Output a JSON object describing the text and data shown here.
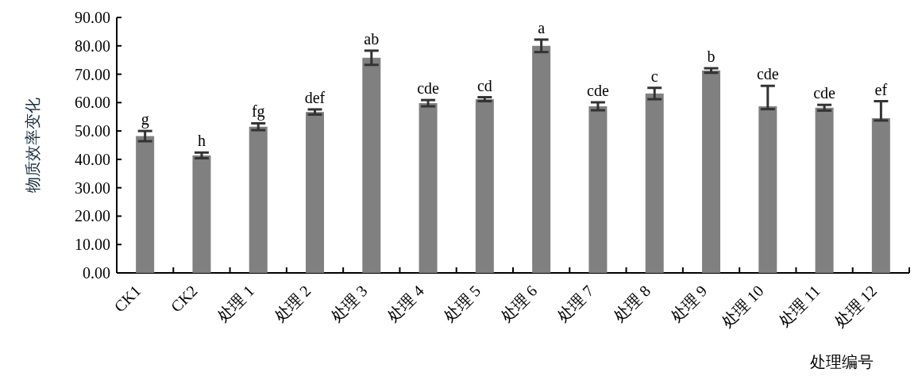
{
  "chart_data": {
    "type": "bar",
    "ylabel": "物质效率变化",
    "xlabel": "处理编号",
    "categories": [
      "CK1",
      "CK2",
      "处理 1",
      "处理 2",
      "处理 3",
      "处理 4",
      "处理 5",
      "处理 6",
      "处理 7",
      "处理 8",
      "处理 9",
      "处理 10",
      "处理 11",
      "处理 12"
    ],
    "values": [
      48.2,
      41.4,
      51.5,
      56.7,
      75.8,
      59.8,
      61.2,
      80.0,
      58.7,
      63.2,
      71.3,
      58.7,
      58.2,
      54.5
    ],
    "errors": [
      1.8,
      1.0,
      1.2,
      0.9,
      2.5,
      1.1,
      0.7,
      2.2,
      1.4,
      2.0,
      0.8,
      [
        57.7,
        65.9
      ],
      1.0,
      [
        53.7,
        60.5
      ]
    ],
    "color": "#808080",
    "ylim": [
      0,
      90
    ],
    "yticks": [
      {
        "value": 0,
        "label": "0.00"
      },
      {
        "value": 10,
        "label": "10.00"
      },
      {
        "value": 20,
        "label": "20.00"
      },
      {
        "value": 30,
        "label": "30.00"
      },
      {
        "value": 40,
        "label": "40.00"
      },
      {
        "value": 50,
        "label": "50.00"
      },
      {
        "value": 60,
        "label": "60.00"
      },
      {
        "value": 70,
        "label": "70.00"
      },
      {
        "value": 80,
        "label": "80.00"
      },
      {
        "value": 90,
        "label": "90.00"
      }
    ],
    "annotations": [
      {
        "text": "g",
        "x": "CK1",
        "y": 50.0
      },
      {
        "text": "h",
        "x": "CK2",
        "y": 42.4
      },
      {
        "text": "fg",
        "x": "处理 1",
        "y": 52.7
      },
      {
        "text": "def",
        "x": "处理 2",
        "y": 57.6
      },
      {
        "text": "ab",
        "x": "处理 3",
        "y": 78.3
      },
      {
        "text": "cde",
        "x": "处理 4",
        "y": 60.9
      },
      {
        "text": "cd",
        "x": "处理 5",
        "y": 61.9
      },
      {
        "text": "a",
        "x": "处理 6",
        "y": 82.2
      },
      {
        "text": "cde",
        "x": "处理 7",
        "y": 60.1
      },
      {
        "text": "c",
        "x": "处理 8",
        "y": 65.2
      },
      {
        "text": "b",
        "x": "处理 9",
        "y": 72.1
      },
      {
        "text": "cde",
        "x": "处理 10",
        "y": 65.9
      },
      {
        "text": "cde",
        "x": "处理 11",
        "y": 59.2
      },
      {
        "text": "ef",
        "x": "处理 12",
        "y": 60.5
      }
    ]
  }
}
